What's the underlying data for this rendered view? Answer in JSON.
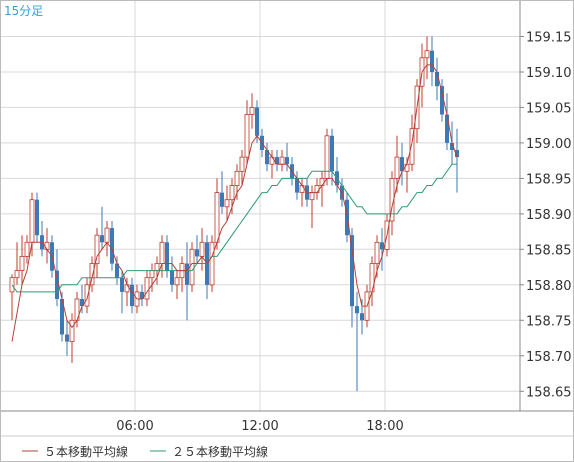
{
  "chart_data": {
    "type": "candlestick",
    "period_label": "15分足",
    "colors": {
      "up": "#c0392b",
      "down": "#3d7ab5",
      "ma5": "#b5423a",
      "ma25": "#2e9a77",
      "grid": "#d8d8d8",
      "axis": "#888888",
      "period_text": "#3aa0d8"
    },
    "ylim": [
      158.625,
      159.2
    ],
    "y_ticks": [
      "159.15",
      "159.10",
      "159.05",
      "159.00",
      "158.95",
      "158.90",
      "158.85",
      "158.80",
      "158.75",
      "158.70",
      "158.65"
    ],
    "y_tick_values": [
      159.15,
      159.1,
      159.05,
      159.0,
      158.95,
      158.9,
      158.85,
      158.8,
      158.75,
      158.7,
      158.65
    ],
    "x_ticks": [
      "06:00",
      "12:00",
      "18:00"
    ],
    "x_tick_bar_index": [
      25,
      50,
      75
    ],
    "grid": true,
    "candles": [
      [
        158.79,
        158.815,
        158.75,
        158.81
      ],
      [
        158.81,
        158.86,
        158.8,
        158.82
      ],
      [
        158.82,
        158.87,
        158.8,
        158.84
      ],
      [
        158.84,
        158.87,
        158.83,
        158.86
      ],
      [
        158.86,
        158.93,
        158.84,
        158.92
      ],
      [
        158.92,
        158.93,
        158.86,
        158.87
      ],
      [
        158.87,
        158.89,
        158.84,
        158.85
      ],
      [
        158.85,
        158.88,
        158.83,
        158.86
      ],
      [
        158.86,
        158.87,
        158.81,
        158.82
      ],
      [
        158.82,
        158.85,
        158.77,
        158.78
      ],
      [
        158.78,
        158.79,
        158.72,
        158.73
      ],
      [
        158.73,
        158.75,
        158.7,
        158.72
      ],
      [
        158.72,
        158.76,
        158.69,
        158.75
      ],
      [
        158.75,
        158.79,
        158.74,
        158.78
      ],
      [
        158.78,
        158.8,
        158.76,
        158.77
      ],
      [
        158.77,
        158.81,
        158.76,
        158.8
      ],
      [
        158.8,
        158.84,
        158.79,
        158.83
      ],
      [
        158.83,
        158.88,
        158.81,
        158.87
      ],
      [
        158.87,
        158.91,
        158.85,
        158.86
      ],
      [
        158.86,
        158.89,
        158.84,
        158.88
      ],
      [
        158.88,
        158.89,
        158.82,
        158.83
      ],
      [
        158.83,
        158.84,
        158.8,
        158.81
      ],
      [
        158.81,
        158.82,
        158.76,
        158.79
      ],
      [
        158.79,
        158.81,
        158.77,
        158.8
      ],
      [
        158.8,
        158.81,
        158.76,
        158.77
      ],
      [
        158.77,
        158.8,
        158.76,
        158.79
      ],
      [
        158.79,
        158.8,
        158.77,
        158.78
      ],
      [
        158.78,
        158.82,
        158.77,
        158.81
      ],
      [
        158.81,
        158.83,
        158.79,
        158.82
      ],
      [
        158.82,
        158.84,
        158.8,
        158.83
      ],
      [
        158.83,
        158.87,
        158.81,
        158.86
      ],
      [
        158.86,
        158.87,
        158.81,
        158.82
      ],
      [
        158.82,
        158.84,
        158.79,
        158.8
      ],
      [
        158.8,
        158.82,
        158.78,
        158.81
      ],
      [
        158.81,
        158.84,
        158.79,
        158.83
      ],
      [
        158.83,
        158.86,
        158.75,
        158.8
      ],
      [
        158.8,
        158.86,
        158.79,
        158.85
      ],
      [
        158.85,
        158.87,
        158.83,
        158.84
      ],
      [
        158.84,
        158.88,
        158.82,
        158.86
      ],
      [
        158.86,
        158.87,
        158.78,
        158.8
      ],
      [
        158.8,
        158.87,
        158.79,
        158.86
      ],
      [
        158.86,
        158.95,
        158.85,
        158.93
      ],
      [
        158.93,
        158.96,
        158.9,
        158.91
      ],
      [
        158.91,
        158.94,
        158.89,
        158.92
      ],
      [
        158.92,
        158.95,
        158.9,
        158.94
      ],
      [
        158.94,
        158.97,
        158.92,
        158.96
      ],
      [
        158.96,
        158.99,
        158.94,
        158.98
      ],
      [
        158.98,
        159.06,
        158.97,
        159.04
      ],
      [
        159.04,
        159.07,
        159.02,
        159.05
      ],
      [
        159.05,
        159.06,
        159.0,
        159.01
      ],
      [
        159.01,
        159.02,
        158.98,
        158.99
      ],
      [
        158.99,
        159.0,
        158.96,
        158.97
      ],
      [
        158.97,
        158.99,
        158.95,
        158.98
      ],
      [
        158.98,
        158.99,
        158.96,
        158.97
      ],
      [
        158.97,
        158.99,
        158.96,
        158.98
      ],
      [
        158.98,
        159.0,
        158.96,
        158.97
      ],
      [
        158.97,
        158.98,
        158.94,
        158.95
      ],
      [
        158.95,
        158.96,
        158.92,
        158.93
      ],
      [
        158.93,
        158.95,
        158.91,
        158.94
      ],
      [
        158.94,
        158.95,
        158.91,
        158.92
      ],
      [
        158.92,
        158.94,
        158.88,
        158.93
      ],
      [
        158.93,
        158.95,
        158.92,
        158.94
      ],
      [
        158.94,
        158.96,
        158.91,
        158.95
      ],
      [
        158.95,
        159.02,
        158.94,
        159.01
      ],
      [
        159.01,
        159.02,
        158.94,
        158.96
      ],
      [
        158.96,
        158.98,
        158.93,
        158.94
      ],
      [
        158.94,
        158.95,
        158.91,
        158.92
      ],
      [
        158.92,
        158.93,
        158.86,
        158.87
      ],
      [
        158.87,
        158.88,
        158.74,
        158.77
      ],
      [
        158.77,
        158.79,
        158.65,
        158.76
      ],
      [
        158.76,
        158.78,
        158.73,
        158.75
      ],
      [
        158.75,
        158.8,
        158.74,
        158.79
      ],
      [
        158.79,
        158.84,
        158.77,
        158.83
      ],
      [
        158.83,
        158.87,
        158.81,
        158.86
      ],
      [
        158.86,
        158.88,
        158.82,
        158.85
      ],
      [
        158.85,
        158.9,
        158.84,
        158.89
      ],
      [
        158.89,
        158.96,
        158.87,
        158.95
      ],
      [
        158.95,
        159.01,
        158.93,
        158.98
      ],
      [
        158.98,
        159.0,
        158.94,
        158.96
      ],
      [
        158.96,
        158.98,
        158.93,
        158.97
      ],
      [
        158.97,
        159.04,
        158.96,
        159.02
      ],
      [
        159.02,
        159.09,
        159.0,
        159.08
      ],
      [
        159.08,
        159.14,
        159.05,
        159.12
      ],
      [
        159.12,
        159.15,
        159.09,
        159.13
      ],
      [
        159.13,
        159.15,
        159.08,
        159.1
      ],
      [
        159.1,
        159.12,
        159.06,
        159.08
      ],
      [
        159.08,
        159.09,
        159.03,
        159.04
      ],
      [
        159.04,
        159.07,
        158.99,
        159.0
      ],
      [
        159.0,
        159.03,
        158.97,
        158.99
      ],
      [
        158.99,
        159.02,
        158.93,
        158.98
      ]
    ],
    "ma5": [
      158.72,
      158.76,
      158.8,
      158.82,
      158.86,
      158.86,
      158.86,
      158.85,
      158.84,
      158.81,
      158.78,
      158.75,
      158.74,
      158.75,
      158.77,
      158.78,
      158.81,
      158.84,
      158.85,
      158.86,
      158.85,
      158.83,
      158.82,
      158.8,
      158.79,
      158.78,
      158.78,
      158.79,
      158.8,
      158.81,
      158.83,
      158.83,
      158.83,
      158.82,
      158.82,
      158.82,
      158.83,
      158.83,
      158.84,
      158.83,
      158.84,
      158.86,
      158.88,
      158.89,
      158.91,
      158.93,
      158.94,
      158.97,
      159.0,
      159.01,
      159.0,
      158.99,
      158.98,
      158.97,
      158.97,
      158.97,
      158.96,
      158.95,
      158.94,
      158.93,
      158.93,
      158.93,
      158.94,
      158.95,
      158.95,
      158.94,
      158.93,
      158.9,
      158.85,
      158.8,
      158.77,
      158.77,
      158.79,
      158.82,
      158.84,
      158.87,
      158.91,
      158.94,
      158.96,
      158.97,
      159.0,
      159.05,
      159.1,
      159.11,
      159.11,
      159.1,
      159.07,
      159.04,
      159.0,
      158.98
    ],
    "ma25": [
      158.8,
      158.79,
      158.79,
      158.79,
      158.79,
      158.79,
      158.79,
      158.79,
      158.79,
      158.79,
      158.8,
      158.8,
      158.8,
      158.8,
      158.81,
      158.81,
      158.81,
      158.81,
      158.81,
      158.81,
      158.81,
      158.81,
      158.81,
      158.82,
      158.82,
      158.82,
      158.82,
      158.82,
      158.82,
      158.82,
      158.82,
      158.82,
      158.82,
      158.82,
      158.82,
      158.82,
      158.82,
      158.83,
      158.83,
      158.83,
      158.84,
      158.84,
      158.85,
      158.86,
      158.87,
      158.88,
      158.89,
      158.9,
      158.91,
      158.92,
      158.93,
      158.93,
      158.94,
      158.94,
      158.95,
      158.95,
      158.95,
      158.95,
      158.95,
      158.95,
      158.96,
      158.96,
      158.96,
      158.96,
      158.96,
      158.95,
      158.94,
      158.93,
      158.92,
      158.91,
      158.91,
      158.9,
      158.9,
      158.9,
      158.9,
      158.9,
      158.9,
      158.9,
      158.91,
      158.91,
      158.92,
      158.93,
      158.93,
      158.94,
      158.94,
      158.95,
      158.95,
      158.96,
      158.97,
      158.97
    ],
    "legend": [
      {
        "label": "５本移動平均線",
        "color": "#b5423a"
      },
      {
        "label": "２５本移動平均線",
        "color": "#2e9a77"
      }
    ]
  }
}
